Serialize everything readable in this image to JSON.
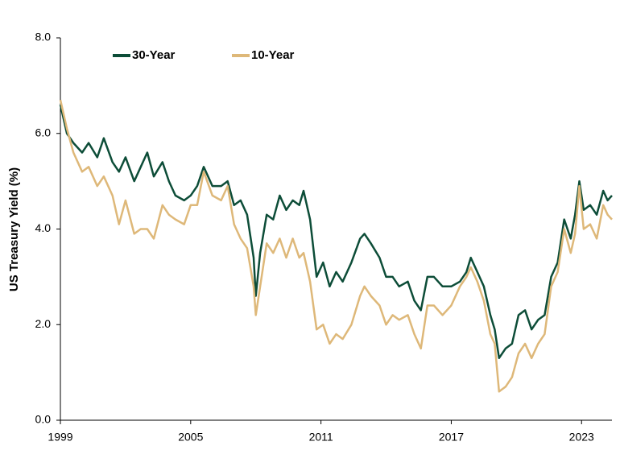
{
  "chart_data": {
    "type": "line",
    "y_label": "US Treasury Yield (%)",
    "x": [
      1999.0,
      1999.3,
      1999.6,
      2000.0,
      2000.3,
      2000.7,
      2001.0,
      2001.4,
      2001.7,
      2002.0,
      2002.4,
      2002.7,
      2003.0,
      2003.3,
      2003.7,
      2004.0,
      2004.3,
      2004.7,
      2005.0,
      2005.3,
      2005.6,
      2006.0,
      2006.4,
      2006.7,
      2007.0,
      2007.3,
      2007.6,
      2007.9,
      2008.0,
      2008.2,
      2008.5,
      2008.8,
      2009.1,
      2009.4,
      2009.7,
      2010.0,
      2010.2,
      2010.5,
      2010.8,
      2011.1,
      2011.4,
      2011.7,
      2012.0,
      2012.4,
      2012.8,
      2013.0,
      2013.3,
      2013.7,
      2014.0,
      2014.3,
      2014.6,
      2015.0,
      2015.3,
      2015.6,
      2015.9,
      2016.2,
      2016.6,
      2017.0,
      2017.4,
      2017.7,
      2017.9,
      2018.2,
      2018.5,
      2018.8,
      2019.0,
      2019.2,
      2019.5,
      2019.8,
      2020.1,
      2020.4,
      2020.7,
      2021.0,
      2021.3,
      2021.6,
      2021.9,
      2022.2,
      2022.5,
      2022.7,
      2022.9,
      2023.1,
      2023.4,
      2023.7,
      2024.0,
      2024.2,
      2024.4
    ],
    "series": [
      {
        "name": "30-Year",
        "color": "#0d4d38",
        "values": [
          6.6,
          6.0,
          5.8,
          5.6,
          5.8,
          5.5,
          5.9,
          5.4,
          5.2,
          5.5,
          5.0,
          5.3,
          5.6,
          5.1,
          5.4,
          5.0,
          4.7,
          4.6,
          4.7,
          4.9,
          5.3,
          4.9,
          4.9,
          5.0,
          4.5,
          4.6,
          4.3,
          3.4,
          2.6,
          3.5,
          4.3,
          4.2,
          4.7,
          4.4,
          4.6,
          4.5,
          4.8,
          4.2,
          3.0,
          3.3,
          2.8,
          3.1,
          2.9,
          3.3,
          3.8,
          3.9,
          3.7,
          3.4,
          3.0,
          3.0,
          2.8,
          2.9,
          2.5,
          2.3,
          3.0,
          3.0,
          2.8,
          2.8,
          2.9,
          3.1,
          3.4,
          3.1,
          2.8,
          2.2,
          1.9,
          1.3,
          1.5,
          1.6,
          2.2,
          2.3,
          1.9,
          2.1,
          2.2,
          3.0,
          3.3,
          4.2,
          3.8,
          4.3,
          5.0,
          4.4,
          4.5,
          4.3,
          4.8,
          4.6,
          4.7
        ]
      },
      {
        "name": "10-Year",
        "color": "#deb879",
        "values": [
          6.7,
          6.1,
          5.6,
          5.2,
          5.3,
          4.9,
          5.1,
          4.7,
          4.1,
          4.6,
          3.9,
          4.0,
          4.0,
          3.8,
          4.5,
          4.3,
          4.2,
          4.1,
          4.5,
          4.5,
          5.2,
          4.7,
          4.6,
          4.9,
          4.1,
          3.8,
          3.6,
          2.8,
          2.2,
          2.8,
          3.7,
          3.5,
          3.8,
          3.4,
          3.8,
          3.4,
          3.5,
          2.9,
          1.9,
          2.0,
          1.6,
          1.8,
          1.7,
          2.0,
          2.6,
          2.8,
          2.6,
          2.4,
          2.0,
          2.2,
          2.1,
          2.2,
          1.8,
          1.5,
          2.4,
          2.4,
          2.2,
          2.4,
          2.8,
          3.0,
          3.2,
          2.9,
          2.5,
          1.8,
          1.6,
          0.6,
          0.7,
          0.9,
          1.4,
          1.6,
          1.3,
          1.6,
          1.8,
          2.8,
          3.1,
          4.0,
          3.5,
          3.9,
          4.9,
          4.0,
          4.1,
          3.8,
          4.5,
          4.3,
          4.2
        ]
      }
    ],
    "xlim": [
      1999,
      2024.4
    ],
    "xticks": [
      1999,
      2005,
      2011,
      2017,
      2023
    ],
    "ylim": [
      0,
      8
    ],
    "yticks": [
      {
        "value": 0,
        "label": "0.0"
      },
      {
        "value": 2,
        "label": "2.0"
      },
      {
        "value": 4,
        "label": "4.0"
      },
      {
        "value": 6,
        "label": "6.0"
      },
      {
        "value": 8,
        "label": "8.0"
      }
    ],
    "grid": false
  }
}
